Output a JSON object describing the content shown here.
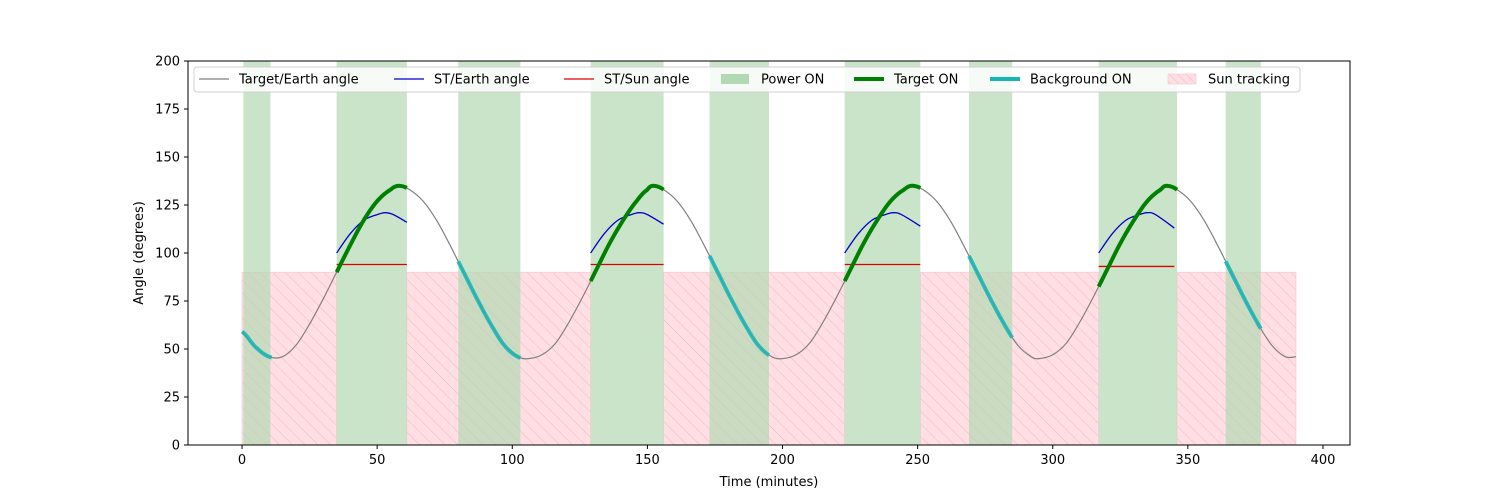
{
  "chart_data": {
    "type": "line",
    "title": "",
    "xlabel": "Time (minutes)",
    "ylabel": "Angle (degrees)",
    "xlim": [
      -20,
      410
    ],
    "ylim": [
      0,
      200
    ],
    "xticks": [
      0,
      50,
      100,
      150,
      200,
      250,
      300,
      350,
      400
    ],
    "yticks": [
      0,
      25,
      50,
      75,
      100,
      125,
      150,
      175,
      200
    ],
    "grid": false,
    "legend_position": "top, spanning plot width",
    "colors": {
      "target_earth": "#808080",
      "st_earth": "#0000cc",
      "st_sun": "#dd0000",
      "power_on": "#b3d9b3",
      "target_on": "#008000",
      "background_on": "#17b5b5",
      "sun_tracking_fill": "#ffdfe3",
      "sun_tracking_hatch": "#f4b6bf"
    },
    "legend": [
      {
        "key": "target_earth",
        "label": "Target/Earth angle",
        "style": "line"
      },
      {
        "key": "st_earth",
        "label": "ST/Earth angle",
        "style": "line"
      },
      {
        "key": "st_sun",
        "label": "ST/Sun angle",
        "style": "line"
      },
      {
        "key": "power_on",
        "label": "Power ON",
        "style": "patch"
      },
      {
        "key": "target_on",
        "label": "Target ON",
        "style": "thick-line"
      },
      {
        "key": "background_on",
        "label": "Background ON",
        "style": "thick-line"
      },
      {
        "key": "sun_tracking",
        "label": "Sun tracking",
        "style": "hatch-patch"
      }
    ],
    "target_earth_angle": {
      "description": "Periodic angle, period ~94 min, min ~45 deg, max ~135 deg",
      "x": [
        0,
        5,
        10,
        15,
        20,
        25,
        30,
        35,
        40,
        45,
        50,
        55,
        58,
        62,
        67,
        72,
        77,
        82,
        87,
        92,
        97,
        102,
        106,
        111,
        116,
        121,
        126,
        131,
        136,
        141,
        146,
        150,
        152,
        156,
        161,
        166,
        171,
        176,
        181,
        186,
        191,
        196,
        200,
        205,
        210,
        215,
        220,
        225,
        230,
        235,
        240,
        245,
        248,
        252,
        257,
        262,
        267,
        272,
        277,
        282,
        287,
        292,
        295,
        300,
        305,
        310,
        315,
        320,
        325,
        330,
        335,
        340,
        342,
        346,
        351,
        356,
        361,
        366,
        371,
        376,
        381,
        386,
        390
      ],
      "y": [
        59,
        51,
        46,
        46,
        52,
        63,
        76,
        90,
        104,
        117,
        127,
        133,
        135,
        133,
        127,
        117,
        104,
        90,
        76,
        63,
        52,
        46,
        45,
        47,
        53,
        64,
        77,
        91,
        105,
        117,
        127,
        133,
        135,
        133,
        127,
        117,
        104,
        90,
        76,
        63,
        52,
        46,
        45,
        47,
        53,
        64,
        77,
        91,
        105,
        117,
        127,
        133,
        135,
        133,
        127,
        117,
        104,
        90,
        76,
        63,
        52,
        46,
        45,
        47,
        53,
        64,
        77,
        91,
        105,
        117,
        127,
        133,
        135,
        133,
        127,
        117,
        104,
        90,
        76,
        63,
        52,
        46,
        46
      ]
    },
    "st_earth_angle": [
      {
        "x": [
          35,
          40,
          45,
          50,
          53,
          56,
          61
        ],
        "y": [
          100,
          110,
          117,
          120,
          121,
          120,
          116
        ]
      },
      {
        "x": [
          129,
          134,
          139,
          144,
          147,
          150,
          156
        ],
        "y": [
          100,
          110,
          117,
          120,
          121,
          120,
          115
        ]
      },
      {
        "x": [
          223,
          228,
          233,
          238,
          241,
          244,
          251
        ],
        "y": [
          100,
          110,
          117,
          120,
          121,
          120,
          114
        ]
      },
      {
        "x": [
          317,
          322,
          327,
          332,
          335,
          338,
          345
        ],
        "y": [
          100,
          110,
          117,
          120,
          121,
          120,
          113
        ]
      }
    ],
    "st_sun_angle": [
      {
        "x": [
          35,
          61
        ],
        "y": [
          94,
          94
        ]
      },
      {
        "x": [
          129,
          156
        ],
        "y": [
          94,
          94
        ]
      },
      {
        "x": [
          223,
          251
        ],
        "y": [
          94,
          94
        ]
      },
      {
        "x": [
          317,
          345
        ],
        "y": [
          93,
          93
        ]
      }
    ],
    "power_on_intervals": [
      [
        0.5,
        10.5
      ],
      [
        35,
        61
      ],
      [
        80,
        103
      ],
      [
        129,
        156
      ],
      [
        173,
        195
      ],
      [
        223,
        251
      ],
      [
        269,
        285
      ],
      [
        317,
        346
      ],
      [
        364,
        377
      ]
    ],
    "target_on_intervals": [
      [
        35,
        61
      ],
      [
        129,
        156
      ],
      [
        223,
        251
      ],
      [
        317,
        346
      ]
    ],
    "background_on_intervals": [
      [
        0,
        11
      ],
      [
        80,
        103
      ],
      [
        173,
        195
      ],
      [
        269,
        285
      ],
      [
        364,
        377
      ]
    ],
    "sun_tracking_intervals": [
      [
        0,
        35
      ],
      [
        61,
        129
      ],
      [
        156,
        223
      ],
      [
        251,
        317
      ],
      [
        346,
        390
      ]
    ],
    "sun_tracking_level": 90
  }
}
